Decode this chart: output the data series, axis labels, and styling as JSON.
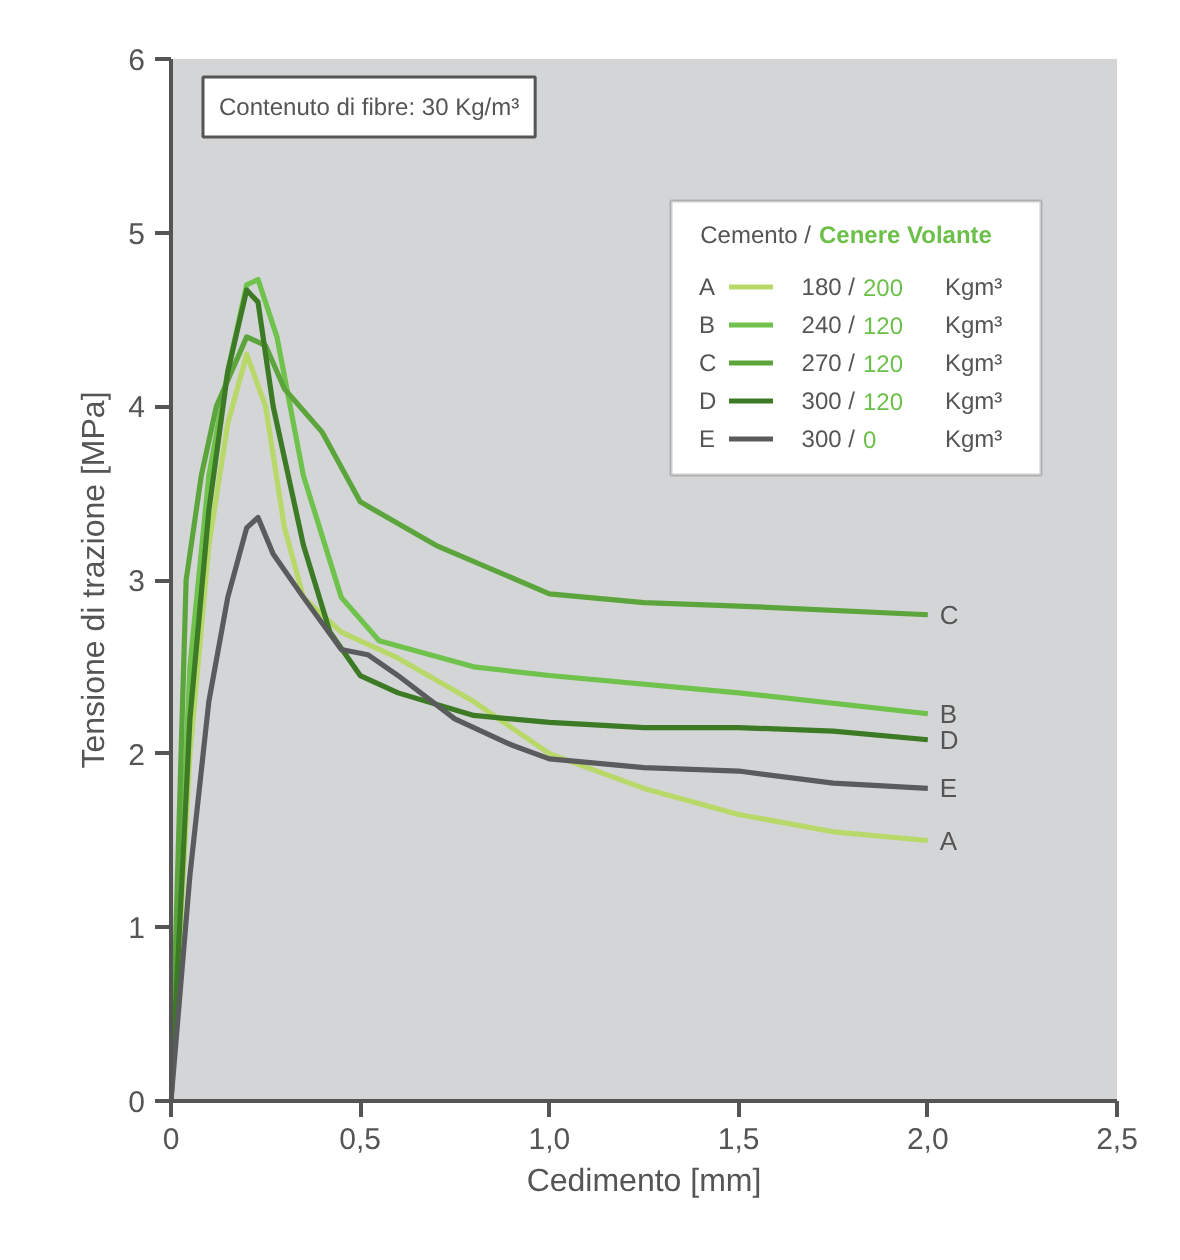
{
  "chart_data": {
    "type": "line",
    "xlabel": "Cedimento [mm]",
    "ylabel": "Tensione di trazione [MPa]",
    "legend_title": "Cemento / Cenere Volante",
    "legend": "top right",
    "grid": false,
    "annotations": [
      "Contenuto di fibre: 30 Kg/m³",
      "180 / 200 Kgm³",
      "240 / 120 Kgm³",
      "270 / 120 Kgm³",
      "300 / 120 Kgm³",
      "300 / 0 Kgm³"
    ],
    "xlim": [
      0,
      2.5
    ],
    "ylim": [
      0,
      6
    ],
    "xticks": [
      0,
      {
        "value": 0.5,
        "label": "0,5"
      },
      {
        "value": 1,
        "label": "1,0"
      },
      {
        "value": 1.5,
        "label": "1,5"
      },
      {
        "value": 2,
        "label": "2,0"
      },
      {
        "value": 2.5,
        "label": "2,5"
      }
    ],
    "yticks": [
      0,
      1,
      2,
      3,
      4,
      5,
      6
    ],
    "series": [
      {
        "name": "A",
        "color": "#b8d96a",
        "x": [
          0,
          0.05,
          0.1,
          0.15,
          0.2,
          0.25,
          0.3,
          0.35,
          0.45,
          0.6,
          0.8,
          1.0,
          1.25,
          1.5,
          1.75,
          2.0
        ],
        "values": [
          0,
          2.0,
          3.2,
          3.9,
          4.3,
          4.0,
          3.3,
          2.9,
          2.7,
          2.55,
          2.3,
          2.0,
          1.8,
          1.65,
          1.55,
          1.5
        ]
      },
      {
        "name": "B",
        "color": "#6fc24b",
        "x": [
          0,
          0.05,
          0.1,
          0.15,
          0.2,
          0.23,
          0.28,
          0.35,
          0.45,
          0.55,
          0.8,
          1.0,
          1.5,
          2.0
        ],
        "values": [
          0,
          2.5,
          3.6,
          4.2,
          4.7,
          4.73,
          4.4,
          3.6,
          2.9,
          2.65,
          2.5,
          2.45,
          2.35,
          2.23
        ]
      },
      {
        "name": "C",
        "color": "#5ba53c",
        "x": [
          0,
          0.04,
          0.08,
          0.12,
          0.2,
          0.25,
          0.3,
          0.4,
          0.5,
          0.7,
          1.0,
          1.25,
          1.5,
          2.0
        ],
        "values": [
          0,
          3.0,
          3.6,
          4.0,
          4.4,
          4.35,
          4.1,
          3.85,
          3.45,
          3.2,
          2.92,
          2.87,
          2.85,
          2.8
        ]
      },
      {
        "name": "D",
        "color": "#3c7a25",
        "x": [
          0,
          0.05,
          0.1,
          0.15,
          0.2,
          0.23,
          0.27,
          0.35,
          0.42,
          0.5,
          0.6,
          0.8,
          1.0,
          1.25,
          1.5,
          1.75,
          2.0
        ],
        "values": [
          0,
          2.2,
          3.4,
          4.2,
          4.67,
          4.6,
          4.0,
          3.2,
          2.7,
          2.45,
          2.35,
          2.22,
          2.18,
          2.15,
          2.15,
          2.13,
          2.08
        ]
      },
      {
        "name": "E",
        "color": "#5a5b5d",
        "x": [
          0,
          0.05,
          0.1,
          0.15,
          0.2,
          0.23,
          0.27,
          0.35,
          0.45,
          0.52,
          0.6,
          0.75,
          0.9,
          1.0,
          1.25,
          1.5,
          1.75,
          2.0
        ],
        "values": [
          0,
          1.3,
          2.3,
          2.9,
          3.3,
          3.36,
          3.15,
          2.9,
          2.6,
          2.57,
          2.45,
          2.2,
          2.05,
          1.97,
          1.92,
          1.9,
          1.83,
          1.8
        ]
      }
    ]
  }
}
